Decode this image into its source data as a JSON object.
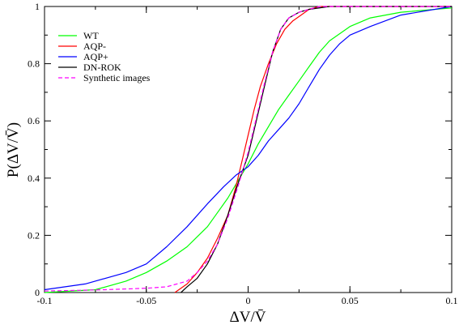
{
  "chart_data": {
    "type": "line",
    "xlabel": "ΔV/V̄",
    "ylabel": "P(ΔV/V̄)",
    "xlim": [
      -0.1,
      0.1
    ],
    "ylim": [
      0,
      1
    ],
    "x_ticks": [
      -0.1,
      -0.05,
      0,
      0.05,
      0.1
    ],
    "x_tick_labels": [
      "-0.1",
      "-0.05",
      "0",
      "0.05",
      "0.1"
    ],
    "y_ticks": [
      0,
      0.2,
      0.4,
      0.6,
      0.8,
      1
    ],
    "y_tick_labels": [
      "0",
      "0.2",
      "0.4",
      "0.6",
      "0.8",
      "1"
    ],
    "grid": false,
    "legend_position": "top-left",
    "series": [
      {
        "name": "WT",
        "color": "#00ff00",
        "dash": "solid",
        "points": [
          [
            -0.1,
            0.0
          ],
          [
            -0.075,
            0.01
          ],
          [
            -0.06,
            0.04
          ],
          [
            -0.05,
            0.07
          ],
          [
            -0.04,
            0.11
          ],
          [
            -0.03,
            0.16
          ],
          [
            -0.02,
            0.23
          ],
          [
            -0.015,
            0.28
          ],
          [
            -0.01,
            0.33
          ],
          [
            -0.005,
            0.39
          ],
          [
            0,
            0.45
          ],
          [
            0.005,
            0.52
          ],
          [
            0.01,
            0.58
          ],
          [
            0.015,
            0.64
          ],
          [
            0.02,
            0.69
          ],
          [
            0.025,
            0.74
          ],
          [
            0.03,
            0.79
          ],
          [
            0.035,
            0.84
          ],
          [
            0.04,
            0.88
          ],
          [
            0.05,
            0.93
          ],
          [
            0.06,
            0.96
          ],
          [
            0.075,
            0.98
          ],
          [
            0.1,
            0.995
          ]
        ]
      },
      {
        "name": "AQP-",
        "color": "#ff0000",
        "dash": "solid",
        "points": [
          [
            -0.036,
            0.0
          ],
          [
            -0.03,
            0.03
          ],
          [
            -0.025,
            0.07
          ],
          [
            -0.02,
            0.12
          ],
          [
            -0.015,
            0.19
          ],
          [
            -0.01,
            0.27
          ],
          [
            -0.006,
            0.37
          ],
          [
            -0.003,
            0.46
          ],
          [
            0,
            0.55
          ],
          [
            0.003,
            0.64
          ],
          [
            0.006,
            0.72
          ],
          [
            0.01,
            0.8
          ],
          [
            0.014,
            0.87
          ],
          [
            0.018,
            0.92
          ],
          [
            0.022,
            0.95
          ],
          [
            0.026,
            0.97
          ],
          [
            0.03,
            0.99
          ],
          [
            0.035,
            1.0
          ],
          [
            0.1,
            1.0
          ]
        ]
      },
      {
        "name": "AQP+",
        "color": "#0000ff",
        "dash": "solid",
        "points": [
          [
            -0.1,
            0.01
          ],
          [
            -0.08,
            0.03
          ],
          [
            -0.06,
            0.07
          ],
          [
            -0.05,
            0.1
          ],
          [
            -0.04,
            0.16
          ],
          [
            -0.03,
            0.23
          ],
          [
            -0.02,
            0.31
          ],
          [
            -0.012,
            0.37
          ],
          [
            -0.006,
            0.41
          ],
          [
            0,
            0.44
          ],
          [
            0.005,
            0.48
          ],
          [
            0.01,
            0.53
          ],
          [
            0.015,
            0.57
          ],
          [
            0.02,
            0.61
          ],
          [
            0.025,
            0.66
          ],
          [
            0.03,
            0.72
          ],
          [
            0.035,
            0.78
          ],
          [
            0.04,
            0.83
          ],
          [
            0.045,
            0.87
          ],
          [
            0.05,
            0.9
          ],
          [
            0.06,
            0.93
          ],
          [
            0.075,
            0.97
          ],
          [
            0.1,
            1.0
          ]
        ]
      },
      {
        "name": "DN-ROK",
        "color": "#000000",
        "dash": "solid",
        "points": [
          [
            -0.033,
            0.0
          ],
          [
            -0.03,
            0.02
          ],
          [
            -0.025,
            0.05
          ],
          [
            -0.02,
            0.1
          ],
          [
            -0.015,
            0.17
          ],
          [
            -0.01,
            0.27
          ],
          [
            -0.005,
            0.38
          ],
          [
            0,
            0.48
          ],
          [
            0.004,
            0.6
          ],
          [
            0.008,
            0.72
          ],
          [
            0.012,
            0.84
          ],
          [
            0.016,
            0.92
          ],
          [
            0.02,
            0.96
          ],
          [
            0.025,
            0.98
          ],
          [
            0.03,
            0.99
          ],
          [
            0.04,
            1.0
          ],
          [
            0.1,
            1.0
          ]
        ]
      },
      {
        "name": "Synthetic images",
        "color": "#ff00ff",
        "dash": "dashed",
        "points": [
          [
            -0.1,
            0.005
          ],
          [
            -0.07,
            0.01
          ],
          [
            -0.05,
            0.015
          ],
          [
            -0.04,
            0.02
          ],
          [
            -0.03,
            0.04
          ],
          [
            -0.025,
            0.07
          ],
          [
            -0.02,
            0.11
          ],
          [
            -0.015,
            0.17
          ],
          [
            -0.01,
            0.26
          ],
          [
            -0.005,
            0.37
          ],
          [
            0,
            0.49
          ],
          [
            0.004,
            0.61
          ],
          [
            0.008,
            0.73
          ],
          [
            0.012,
            0.84
          ],
          [
            0.016,
            0.92
          ],
          [
            0.02,
            0.96
          ],
          [
            0.025,
            0.98
          ],
          [
            0.035,
            1.0
          ],
          [
            0.1,
            1.0
          ]
        ]
      }
    ]
  }
}
